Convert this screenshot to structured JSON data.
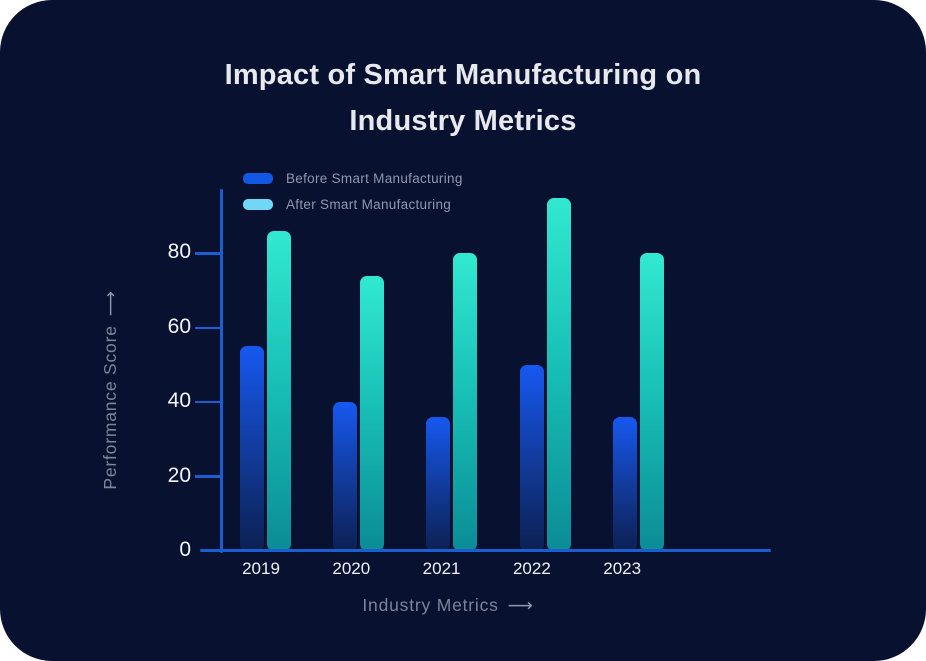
{
  "page": {
    "background": "#ffffff",
    "card_background": "#081230"
  },
  "title_lines": [
    "Impact of Smart Manufacturing on",
    "Industry Metrics"
  ],
  "icons": {
    "long_arrow": "⟶"
  },
  "chart_data": {
    "type": "bar",
    "title": "Impact of Smart Manufacturing on Industry Metrics",
    "categories": [
      "2019",
      "2020",
      "2021",
      "2022",
      "2023"
    ],
    "series": [
      {
        "name": "Before Smart Manufacturing",
        "values": [
          55,
          40,
          36,
          50,
          36
        ]
      },
      {
        "name": "After Smart Manufacturing",
        "values": [
          86,
          74,
          80,
          95,
          80
        ]
      }
    ],
    "xlabel": "Industry Metrics",
    "ylabel": "Performance Score",
    "yticks": [
      0,
      20,
      40,
      60,
      80
    ],
    "ylim": [
      0,
      97
    ],
    "grid": false,
    "legend_position": "top-left"
  },
  "colors": {
    "axis": "#1a5fd2",
    "tick_label": "#f3f5f9",
    "axis_title": "#7b8498",
    "legend_text": "#8e97ab",
    "series": [
      {
        "legend": "#1159e5",
        "bar_top": "#1658f0",
        "bar_mid": "#123c9e",
        "bar_bottom": "#0c2053"
      },
      {
        "legend": "#70d7f7",
        "bar_top": "#31e9d1",
        "bar_mid": "#17bdb4",
        "bar_bottom": "#0b8c96"
      }
    ]
  }
}
